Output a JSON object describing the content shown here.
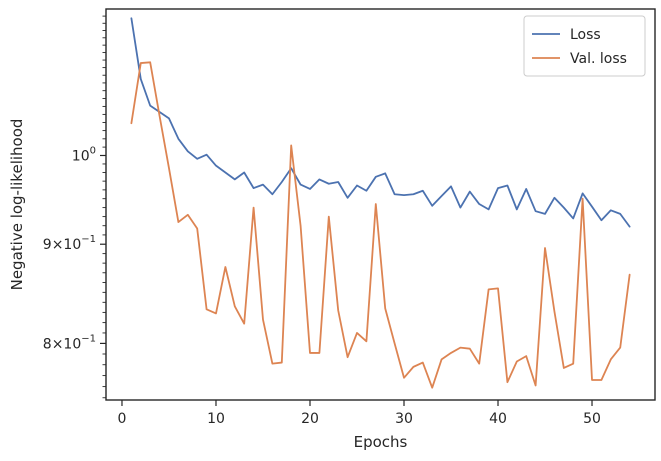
{
  "chart_data": {
    "type": "line",
    "xlabel": "Epochs",
    "ylabel": "Negative log-likelihood",
    "xlim": [
      -1.7,
      56.7
    ],
    "ylim": [
      0.748,
      1.19
    ],
    "yscale": "log",
    "grid": false,
    "legend_position": "top-right",
    "x_ticks": [
      {
        "value": 0,
        "label": "0"
      },
      {
        "value": 10,
        "label": "10"
      },
      {
        "value": 20,
        "label": "20"
      },
      {
        "value": 30,
        "label": "30"
      },
      {
        "value": 40,
        "label": "40"
      },
      {
        "value": 50,
        "label": "50"
      }
    ],
    "y_ticks": [
      {
        "value": 1.0,
        "mantissa": "",
        "exponent": "0",
        "base": "10"
      },
      {
        "value": 0.9,
        "mantissa": "9×",
        "exponent": "−1",
        "base": "10"
      },
      {
        "value": 0.8,
        "mantissa": "8×",
        "exponent": "−1",
        "base": "10"
      }
    ],
    "x": [
      1,
      2,
      3,
      4,
      5,
      6,
      7,
      8,
      9,
      10,
      11,
      12,
      13,
      14,
      15,
      16,
      17,
      18,
      19,
      20,
      21,
      22,
      23,
      24,
      25,
      26,
      27,
      28,
      29,
      30,
      31,
      32,
      33,
      34,
      35,
      36,
      37,
      38,
      39,
      40,
      41,
      42,
      43,
      44,
      45,
      46,
      47,
      48,
      49,
      50,
      51,
      52,
      53,
      54
    ],
    "series": [
      {
        "name": "Loss",
        "color": "#4c72b0",
        "values": [
          1.177,
          1.095,
          1.061,
          1.053,
          1.045,
          1.02,
          1.005,
          0.996,
          1.001,
          0.988,
          0.98,
          0.972,
          0.98,
          0.962,
          0.966,
          0.955,
          0.969,
          0.985,
          0.966,
          0.961,
          0.972,
          0.967,
          0.969,
          0.951,
          0.965,
          0.959,
          0.975,
          0.979,
          0.955,
          0.954,
          0.955,
          0.959,
          0.942,
          0.953,
          0.964,
          0.94,
          0.958,
          0.944,
          0.938,
          0.962,
          0.965,
          0.938,
          0.961,
          0.936,
          0.933,
          0.951,
          0.94,
          0.928,
          0.956,
          0.941,
          0.926,
          0.937,
          0.933,
          0.919
        ]
      },
      {
        "name": "Val. loss",
        "color": "#dd8452",
        "values": [
          1.039,
          1.116,
          1.117,
          1.048,
          0.985,
          0.924,
          0.932,
          0.917,
          0.833,
          0.829,
          0.876,
          0.836,
          0.819,
          0.94,
          0.823,
          0.781,
          0.782,
          1.012,
          0.92,
          0.791,
          0.791,
          0.93,
          0.832,
          0.787,
          0.81,
          0.802,
          0.944,
          0.834,
          0.8,
          0.768,
          0.778,
          0.782,
          0.759,
          0.785,
          0.791,
          0.796,
          0.795,
          0.781,
          0.853,
          0.854,
          0.764,
          0.783,
          0.788,
          0.761,
          0.896,
          0.831,
          0.777,
          0.781,
          0.95,
          0.766,
          0.766,
          0.785,
          0.796,
          0.868
        ]
      }
    ]
  }
}
